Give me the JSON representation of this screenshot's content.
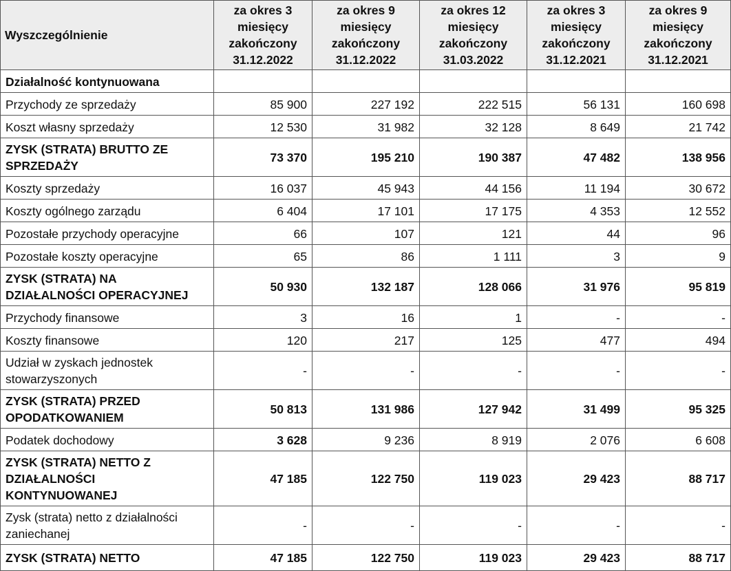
{
  "table": {
    "header": [
      "Wyszczególnienie",
      "za okres 3 miesięcy zakończony 31.12.2022",
      "za okres 9 miesięcy zakończony 31.12.2022",
      "za okres 12 miesięcy zakończony 31.03.2022",
      "za okres 3 miesięcy zakończony 31.12.2021",
      "za okres 9 miesięcy zakończony 31.12.2021"
    ],
    "rows": [
      [
        "Działalność kontynuowana"
      ],
      [
        "Przychody ze sprzedaży",
        "85 900",
        "227 192",
        "222 515",
        "56 131",
        "160 698"
      ],
      [
        "Koszt własny sprzedaży",
        "12 530",
        "31 982",
        "32 128",
        "8 649",
        "21 742"
      ],
      [
        "ZYSK (STRATA) BRUTTO ZE SPRZEDAŻY",
        "73 370",
        "195 210",
        "190 387",
        "47 482",
        "138 956"
      ],
      [
        "Koszty sprzedaży",
        "16 037",
        "45 943",
        "44 156",
        "11 194",
        "30 672"
      ],
      [
        "Koszty ogólnego zarządu",
        "6 404",
        "17 101",
        "17 175",
        "4 353",
        "12 552"
      ],
      [
        "Pozostałe przychody operacyjne",
        "66",
        "107",
        "121",
        "44",
        "96"
      ],
      [
        "Pozostałe koszty operacyjne",
        "65",
        "86",
        "1 111",
        "3",
        "9"
      ],
      [
        "ZYSK (STRATA) NA DZIAŁALNOŚCI OPERACYJNEJ",
        "50 930",
        "132 187",
        "128 066",
        "31 976",
        "95 819"
      ],
      [
        "Przychody finansowe",
        "3",
        "16",
        "1",
        "-",
        "-"
      ],
      [
        "Koszty finansowe",
        "120",
        "217",
        "125",
        "477",
        "494"
      ],
      [
        "Udział w zyskach jednostek stowarzyszonych",
        "-",
        "-",
        "-",
        "-",
        "-"
      ],
      [
        "ZYSK (STRATA) PRZED OPODATKOWANIEM",
        "50 813",
        "131 986",
        "127 942",
        "31 499",
        "95 325"
      ],
      [
        "Podatek dochodowy",
        "3 628",
        "9 236",
        "8 919",
        "2 076",
        "6 608"
      ],
      [
        "ZYSK (STRATA) NETTO Z DZIAŁALNOŚCI KONTYNUOWANEJ",
        "47 185",
        "122 750",
        "119 023",
        "29 423",
        "88 717"
      ],
      [
        "Zysk (strata) netto z działalności zaniechanej",
        "-",
        "-",
        "-",
        "-",
        "-"
      ],
      [
        "ZYSK (STRATA) NETTO",
        "47 185",
        "122 750",
        "119 023",
        "29 423",
        "88 717"
      ]
    ]
  }
}
